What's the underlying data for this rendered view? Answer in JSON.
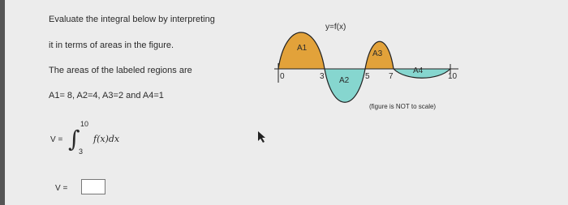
{
  "problem": {
    "lines": [
      "Evaluate the integral below by interpreting",
      "it in terms of areas in the figure.",
      "The areas of the labeled regions are",
      "A1= 8, A2=4, A3=2 and A4=1"
    ]
  },
  "integral": {
    "lhs": "V =",
    "upper": "10",
    "lower": "3",
    "integrand": "f(x)dx"
  },
  "answer": {
    "label": "V ="
  },
  "figure": {
    "curve_label": "y=f(x)",
    "regions": [
      "A1",
      "A2",
      "A3",
      "A4"
    ],
    "x_labels": [
      "0",
      "3",
      "5",
      "7",
      "10"
    ],
    "note": "(figure is NOT to scale)"
  }
}
